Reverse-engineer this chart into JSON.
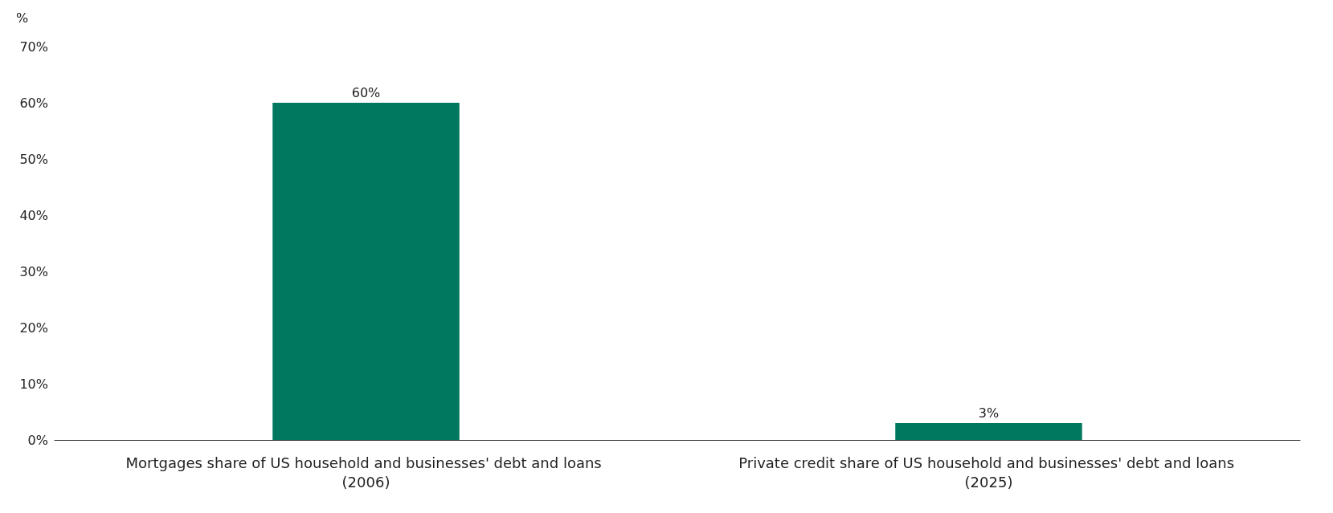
{
  "chart_data": {
    "type": "bar",
    "ylabel": "%",
    "categories": [
      "Mortgages share of US household and businesses' debt and loans (2006)",
      "Private credit share of US household and businesses' debt and loans (2025)"
    ],
    "values": [
      60,
      3
    ],
    "value_labels": [
      "60%",
      "3%"
    ],
    "color": "#00785f",
    "ylim": [
      0,
      70
    ],
    "yticks": [
      {
        "value": 0,
        "label": "0%"
      },
      {
        "value": 10,
        "label": "10%"
      },
      {
        "value": 20,
        "label": "20%"
      },
      {
        "value": 30,
        "label": "30%"
      },
      {
        "value": 40,
        "label": "40%"
      },
      {
        "value": 50,
        "label": "50%"
      },
      {
        "value": 60,
        "label": "60%"
      },
      {
        "value": 70,
        "label": "70%"
      }
    ],
    "grid": false
  }
}
